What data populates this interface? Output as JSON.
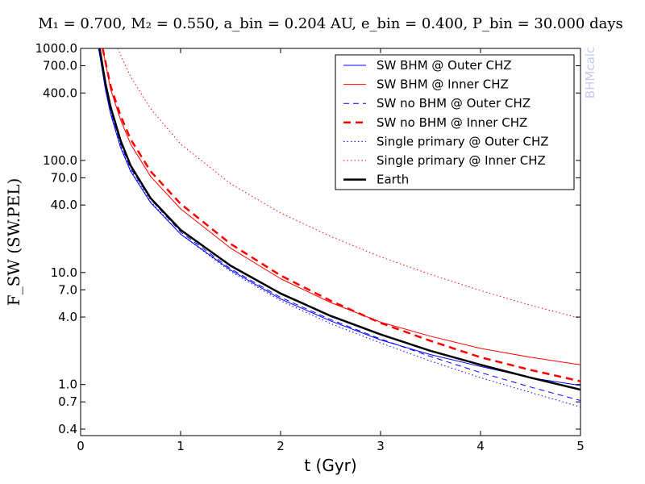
{
  "chart_data": {
    "type": "line",
    "title": "M₁ = 0.700, M₂ = 0.550, a_bin = 0.204 AU, e_bin = 0.400, P_bin = 30.000 days",
    "xlabel": "t (Gyr)",
    "ylabel": "F_SW (SW.PEL)",
    "xlim": [
      0,
      5
    ],
    "ylim": [
      0.35,
      1000
    ],
    "yscale": "log",
    "grid": false,
    "legend_position": "top-right",
    "watermark": "BHMcalc",
    "x_ticks": [
      "0",
      "1",
      "2",
      "3",
      "4",
      "5"
    ],
    "y_ticks": [
      "1000.0",
      "700.0",
      "400.0",
      "100.0",
      "70.0",
      "40.0",
      "10.0",
      "7.0",
      "4.0",
      "1.0",
      "0.7",
      "0.4"
    ],
    "y_tick_values": [
      1000,
      700,
      400,
      100,
      70,
      40,
      10,
      7,
      4,
      1,
      0.7,
      0.4
    ],
    "series": [
      {
        "name": "SW BHM @ Outer CHZ",
        "color": "#0000ff",
        "style": "solid",
        "width": 1,
        "x": [
          0.18,
          0.25,
          0.3,
          0.4,
          0.5,
          0.7,
          1.0,
          1.5,
          2.0,
          2.5,
          3.0,
          3.5,
          4.0,
          4.5,
          5.0
        ],
        "y": [
          1000,
          420,
          260,
          130,
          80,
          42,
          22,
          10.5,
          5.8,
          3.7,
          2.5,
          1.85,
          1.45,
          1.15,
          0.98
        ]
      },
      {
        "name": "SW BHM @ Inner CHZ",
        "color": "#ff0000",
        "style": "solid",
        "width": 1,
        "x": [
          0.22,
          0.3,
          0.4,
          0.5,
          0.7,
          1.0,
          1.5,
          2.0,
          2.5,
          3.0,
          3.5,
          4.0,
          4.5,
          5.0
        ],
        "y": [
          1000,
          430,
          230,
          140,
          72,
          37,
          16.5,
          8.8,
          5.4,
          3.6,
          2.7,
          2.1,
          1.75,
          1.5
        ]
      },
      {
        "name": "SW no BHM @ Outer CHZ",
        "color": "#0000ff",
        "style": "dashed",
        "width": 1,
        "x": [
          0.18,
          0.25,
          0.3,
          0.4,
          0.5,
          0.7,
          1.0,
          1.5,
          2.0,
          2.5,
          3.0,
          3.5,
          4.0,
          4.5,
          5.0
        ],
        "y": [
          1000,
          440,
          280,
          140,
          85,
          45,
          23,
          10.8,
          6.0,
          3.8,
          2.55,
          1.78,
          1.28,
          0.95,
          0.72
        ]
      },
      {
        "name": "SW no BHM @ Inner CHZ",
        "color": "#ff0000",
        "style": "dashed",
        "width": 2.5,
        "x": [
          0.22,
          0.3,
          0.4,
          0.5,
          0.7,
          1.0,
          1.5,
          2.0,
          2.5,
          3.0,
          3.5,
          4.0,
          4.5,
          5.0
        ],
        "y": [
          1000,
          460,
          250,
          155,
          80,
          41,
          18,
          9.4,
          5.6,
          3.55,
          2.45,
          1.75,
          1.35,
          1.07
        ]
      },
      {
        "name": "Single primary @ Outer CHZ",
        "color": "#0000ff",
        "style": "dotted",
        "width": 1,
        "x": [
          0.18,
          0.25,
          0.3,
          0.4,
          0.5,
          0.7,
          1.0,
          1.5,
          2.0,
          2.5,
          3.0,
          3.5,
          4.0,
          4.5,
          5.0
        ],
        "y": [
          1000,
          430,
          270,
          135,
          82,
          43,
          22,
          10.2,
          5.6,
          3.5,
          2.35,
          1.62,
          1.15,
          0.85,
          0.63
        ]
      },
      {
        "name": "Single primary @ Inner CHZ",
        "color": "#ff0000",
        "style": "dotted",
        "width": 1,
        "x": [
          0.37,
          0.5,
          0.7,
          1.0,
          1.5,
          2.0,
          2.5,
          3.0,
          3.5,
          4.0,
          4.5,
          5.0
        ],
        "y": [
          1000,
          560,
          290,
          140,
          62,
          34,
          21,
          13.8,
          9.6,
          6.9,
          5.1,
          3.9
        ]
      },
      {
        "name": "Earth",
        "color": "#000000",
        "style": "solid",
        "width": 2.5,
        "x": [
          0.19,
          0.25,
          0.3,
          0.4,
          0.5,
          0.7,
          1.0,
          1.5,
          2.0,
          2.5,
          3.0,
          3.5,
          4.0,
          4.5,
          5.0
        ],
        "y": [
          1000,
          480,
          300,
          150,
          90,
          46,
          24,
          11.5,
          6.5,
          4.1,
          2.8,
          2.0,
          1.5,
          1.15,
          0.9
        ]
      }
    ]
  }
}
